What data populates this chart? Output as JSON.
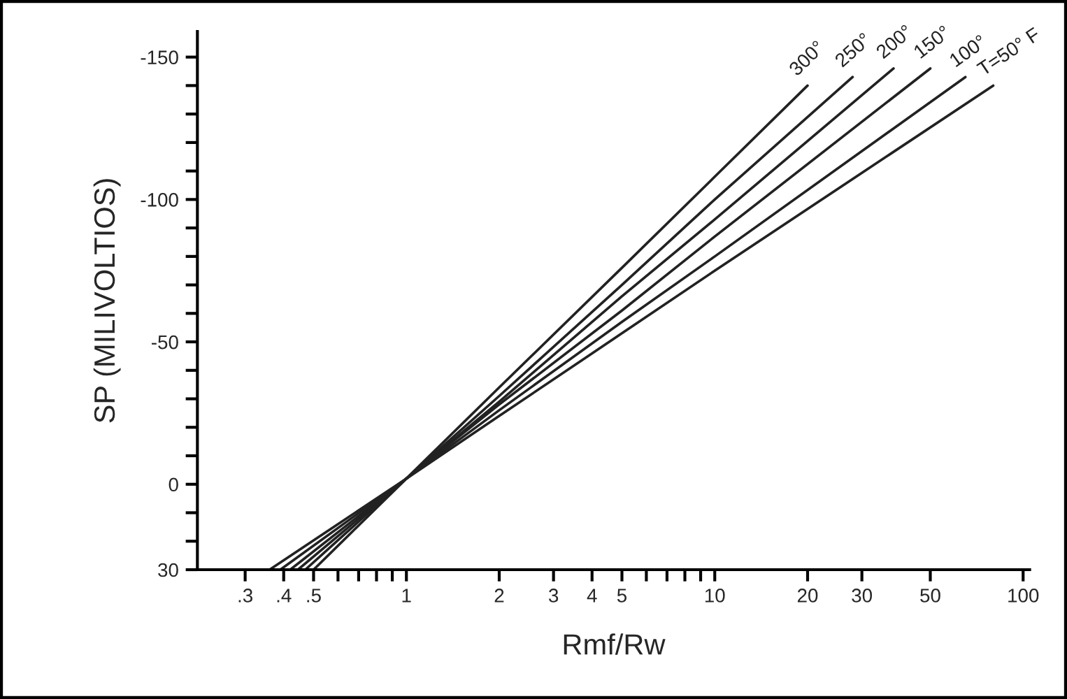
{
  "chart_data": {
    "type": "line",
    "xlabel": "Rmf/Rw",
    "ylabel": "SP (MILIVOLTIOS)",
    "log": "x",
    "xlim": [
      0.21,
      105
    ],
    "ylim": [
      30,
      -159
    ],
    "xticks": [
      {
        "value": 0.3,
        "label": ".3"
      },
      {
        "value": 0.4,
        "label": ".4"
      },
      {
        "value": 0.5,
        "label": ".5"
      },
      {
        "value": 0.6,
        "label": null
      },
      {
        "value": 0.7,
        "label": null
      },
      {
        "value": 0.8,
        "label": null
      },
      {
        "value": 0.9,
        "label": null
      },
      1,
      2,
      3,
      4,
      5,
      {
        "value": 6,
        "label": null
      },
      {
        "value": 7,
        "label": null
      },
      {
        "value": 8,
        "label": null
      },
      {
        "value": 9,
        "label": null
      },
      10,
      20,
      30,
      50,
      100
    ],
    "yticks": [
      30,
      {
        "value": 20,
        "label": null
      },
      {
        "value": 10,
        "label": null
      },
      0,
      {
        "value": -10,
        "label": null
      },
      {
        "value": -20,
        "label": null
      },
      {
        "value": -30,
        "label": null
      },
      {
        "value": -40,
        "label": null
      },
      -50,
      {
        "value": -60,
        "label": null
      },
      {
        "value": -70,
        "label": null
      },
      {
        "value": -80,
        "label": null
      },
      {
        "value": -90,
        "label": null
      },
      -100,
      {
        "value": -110,
        "label": null
      },
      {
        "value": -120,
        "label": null
      },
      {
        "value": -130,
        "label": null
      },
      {
        "value": -140,
        "label": null
      },
      -150
    ],
    "grid": false,
    "legend": false,
    "marker": "none",
    "line_style": "solid",
    "series": [
      {
        "name": "300°",
        "color": "#222222",
        "x": [
          0.5,
          1,
          2,
          5,
          10,
          20
        ],
        "values": [
          30,
          -2,
          -34,
          -76,
          -108,
          -140
        ]
      },
      {
        "name": "250°",
        "color": "#222222",
        "x": [
          0.47,
          1,
          2,
          5,
          10,
          28
        ],
        "values": [
          30,
          -2,
          -31,
          -70,
          -100,
          -143
        ]
      },
      {
        "name": "200°",
        "color": "#222222",
        "x": [
          0.445,
          1,
          2,
          5,
          10,
          38
        ],
        "values": [
          30,
          -2,
          -29,
          -66,
          -93,
          -146
        ]
      },
      {
        "name": "150°",
        "color": "#222222",
        "x": [
          0.42,
          1,
          2,
          5,
          10,
          50
        ],
        "values": [
          30,
          -2,
          -28,
          -61,
          -87,
          -146
        ]
      },
      {
        "name": "100°",
        "color": "#222222",
        "x": [
          0.39,
          1,
          2,
          5,
          10,
          65
        ],
        "values": [
          30,
          -2,
          -26,
          -57,
          -80,
          -143
        ]
      },
      {
        "name": "T=50° F",
        "color": "#222222",
        "x": [
          0.36,
          1,
          2,
          5,
          10,
          80
        ],
        "values": [
          30,
          -2,
          -24,
          -53,
          -75,
          -140
        ]
      }
    ]
  }
}
